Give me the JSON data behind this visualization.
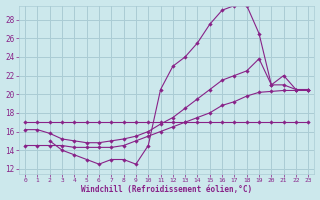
{
  "xlabel": "Windchill (Refroidissement éolien,°C)",
  "bg_color": "#cce8ec",
  "grid_color": "#aaccd4",
  "line_color": "#882288",
  "xlim": [
    -0.5,
    23.5
  ],
  "ylim": [
    11.5,
    29.5
  ],
  "yticks": [
    12,
    14,
    16,
    18,
    20,
    22,
    24,
    26,
    28
  ],
  "xticks": [
    0,
    1,
    2,
    3,
    4,
    5,
    6,
    7,
    8,
    9,
    10,
    11,
    12,
    13,
    14,
    15,
    16,
    17,
    18,
    19,
    20,
    21,
    22,
    23
  ],
  "line1_x": [
    0,
    1,
    2,
    3,
    4,
    5,
    6,
    7,
    8,
    9,
    10,
    11,
    12,
    13,
    14,
    15,
    16,
    17,
    18,
    19,
    20,
    21,
    22,
    23
  ],
  "line1_y": [
    17,
    17,
    17,
    17,
    17,
    17,
    17,
    17,
    17,
    17,
    17,
    17,
    17,
    17,
    17,
    17,
    17,
    17,
    17,
    17,
    17,
    17,
    17,
    17
  ],
  "line2_x": [
    2,
    3,
    4,
    5,
    6,
    7,
    8,
    9,
    10,
    11,
    12,
    13,
    14,
    15,
    16,
    17,
    18,
    19,
    20,
    21,
    22,
    23
  ],
  "line2_y": [
    15,
    14,
    13.5,
    13,
    12.5,
    13,
    13,
    12.5,
    14.5,
    20.5,
    23,
    24,
    25.5,
    27.5,
    29,
    29.5,
    29.5,
    26.5,
    21,
    22,
    20.5,
    20.5
  ],
  "line3_x": [
    0,
    1,
    2,
    3,
    4,
    5,
    6,
    7,
    8,
    9,
    10,
    11,
    12,
    13,
    14,
    15,
    16,
    17,
    18,
    19,
    20,
    21,
    22,
    23
  ],
  "line3_y": [
    16.2,
    16.2,
    15.8,
    15.2,
    15,
    14.8,
    14.8,
    15,
    15.2,
    15.5,
    16,
    16.8,
    17.5,
    18.5,
    19.5,
    20.5,
    21.5,
    22,
    22.5,
    23.8,
    21,
    21,
    20.5,
    20.5
  ],
  "line4_x": [
    0,
    1,
    2,
    3,
    4,
    5,
    6,
    7,
    8,
    9,
    10,
    11,
    12,
    13,
    14,
    15,
    16,
    17,
    18,
    19,
    20,
    21,
    22,
    23
  ],
  "line4_y": [
    14.5,
    14.5,
    14.5,
    14.5,
    14.3,
    14.3,
    14.3,
    14.3,
    14.5,
    15,
    15.5,
    16,
    16.5,
    17,
    17.5,
    18,
    18.8,
    19.2,
    19.8,
    20.2,
    20.3,
    20.4,
    20.4,
    20.4
  ]
}
